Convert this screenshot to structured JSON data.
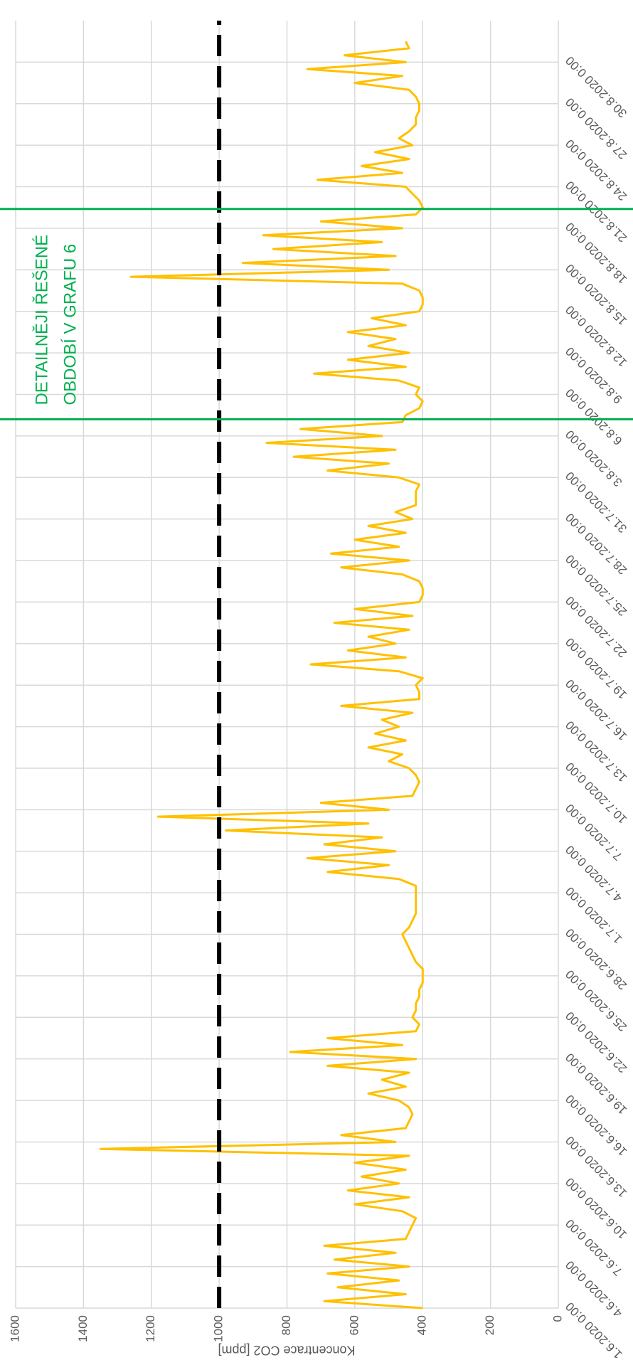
{
  "chart_data": {
    "type": "line",
    "y_label": "Koncentrace CO2 [ppm]",
    "annotation": [
      "DETAILNĚJI ŘEŠENÉ",
      "OBDOBÍ V GRAFU 6"
    ],
    "color": "#ffc000",
    "threshold": 1000,
    "threshold_color": "#000000",
    "vlines": [
      64.2,
      79.4
    ],
    "vline_color": "#00b050",
    "grid": true,
    "xlim": [
      0,
      93
    ],
    "ylim": [
      0,
      1600
    ],
    "yticks": [
      0,
      200,
      400,
      600,
      800,
      1000,
      1200,
      1400,
      1600
    ],
    "xticks": [
      {
        "value": 0,
        "label": "1.6.2020 0:00"
      },
      {
        "value": 3,
        "label": "4.6.2020 0:00"
      },
      {
        "value": 6,
        "label": "7.6.2020 0:00"
      },
      {
        "value": 9,
        "label": "10.6.2020 0:00"
      },
      {
        "value": 12,
        "label": "13.6.2020 0:00"
      },
      {
        "value": 15,
        "label": "16.6.2020 0:00"
      },
      {
        "value": 18,
        "label": "19.6.2020 0:00"
      },
      {
        "value": 21,
        "label": "22.6.2020 0:00"
      },
      {
        "value": 24,
        "label": "25.6.2020 0:00"
      },
      {
        "value": 27,
        "label": "28.6.2020 0:00"
      },
      {
        "value": 30,
        "label": "1.7.2020 0:00"
      },
      {
        "value": 33,
        "label": "4.7.2020 0:00"
      },
      {
        "value": 36,
        "label": "7.7.2020 0:00"
      },
      {
        "value": 39,
        "label": "10.7.2020 0:00"
      },
      {
        "value": 42,
        "label": "13.7.2020 0:00"
      },
      {
        "value": 45,
        "label": "16.7.2020 0:00"
      },
      {
        "value": 48,
        "label": "19.7.2020 0:00"
      },
      {
        "value": 51,
        "label": "22.7.2020 0:00"
      },
      {
        "value": 54,
        "label": "25.7.2020 0:00"
      },
      {
        "value": 57,
        "label": "28.7.2020 0:00"
      },
      {
        "value": 60,
        "label": "31.7.2020 0:00"
      },
      {
        "value": 63,
        "label": "3.8.2020 0:00"
      },
      {
        "value": 66,
        "label": "6.8.2020 0:00"
      },
      {
        "value": 69,
        "label": "9.8.2020 0:00"
      },
      {
        "value": 72,
        "label": "12.8.2020 0:00"
      },
      {
        "value": 75,
        "label": "15.8.2020 0:00"
      },
      {
        "value": 78,
        "label": "18.8.2020 0:00"
      },
      {
        "value": 81,
        "label": "21.8.2020 0:00"
      },
      {
        "value": 84,
        "label": "24.8.2020 0:00"
      },
      {
        "value": 87,
        "label": "27.8.2020 0:00"
      },
      {
        "value": 90,
        "label": "30.8.2020 0:00"
      }
    ],
    "x": [
      0,
      0.5,
      1,
      1.5,
      2,
      2.5,
      3,
      3.5,
      4,
      4.5,
      5,
      5.5,
      6,
      6.5,
      7,
      7.5,
      8,
      8.5,
      9,
      9.5,
      10,
      10.5,
      11,
      11.5,
      12,
      12.5,
      13,
      13.5,
      14,
      14.5,
      15,
      15.5,
      16,
      16.5,
      17,
      17.5,
      18,
      18.5,
      19,
      19.5,
      20,
      20.5,
      21,
      21.5,
      22,
      22.5,
      23,
      23.5,
      24,
      24.5,
      25,
      25.5,
      26,
      26.5,
      27,
      27.5,
      28,
      28.5,
      29,
      29.5,
      30,
      30.5,
      31,
      31.5,
      32,
      32.5,
      33,
      33.5,
      34,
      34.5,
      35,
      35.5,
      36,
      36.5,
      37,
      37.5,
      38,
      38.5,
      39,
      39.5,
      40,
      40.5,
      41,
      41.5,
      42,
      42.5,
      43,
      43.5,
      44,
      44.5,
      45,
      45.5,
      46,
      46.5,
      47,
      47.5,
      48,
      48.5,
      49,
      49.5,
      50,
      50.5,
      51,
      51.5,
      52,
      52.5,
      53,
      53.5,
      54,
      54.5,
      55,
      55.5,
      56,
      56.5,
      57,
      57.5,
      58,
      58.5,
      59,
      59.5,
      60,
      60.5,
      61,
      61.5,
      62,
      62.5,
      63,
      63.5,
      64,
      64.5,
      65,
      65.5,
      66,
      66.5,
      67,
      67.5,
      68,
      68.5,
      69,
      69.5,
      70,
      70.5,
      71,
      71.5,
      72,
      72.5,
      73,
      73.5,
      74,
      74.5,
      75,
      75.5,
      76,
      76.5,
      77,
      77.5,
      78,
      78.5,
      79,
      79.5,
      80,
      80.5,
      81,
      81.5,
      82,
      82.5,
      83,
      83.5,
      84,
      84.5,
      85,
      85.5,
      86,
      86.5,
      87,
      87.5,
      88,
      88.5,
      89,
      89.5,
      90,
      90.5,
      91,
      91.5
    ],
    "values": [
      400,
      690,
      450,
      650,
      470,
      680,
      440,
      660,
      480,
      690,
      450,
      440,
      430,
      420,
      460,
      600,
      440,
      620,
      470,
      580,
      450,
      600,
      440,
      1350,
      480,
      640,
      450,
      440,
      430,
      440,
      470,
      560,
      450,
      520,
      440,
      680,
      420,
      790,
      460,
      680,
      420,
      410,
      430,
      420,
      420,
      410,
      410,
      400,
      400,
      400,
      420,
      430,
      440,
      450,
      460,
      440,
      430,
      420,
      420,
      420,
      420,
      420,
      470,
      680,
      500,
      740,
      480,
      690,
      520,
      980,
      560,
      1180,
      500,
      700,
      430,
      420,
      410,
      420,
      440,
      500,
      460,
      560,
      450,
      540,
      470,
      520,
      430,
      640,
      410,
      410,
      420,
      400,
      470,
      730,
      450,
      620,
      480,
      560,
      440,
      660,
      430,
      600,
      410,
      400,
      400,
      410,
      460,
      640,
      440,
      670,
      470,
      600,
      450,
      560,
      430,
      480,
      420,
      420,
      420,
      410,
      470,
      680,
      500,
      780,
      480,
      860,
      520,
      760,
      460,
      450,
      410,
      400,
      420,
      410,
      470,
      720,
      450,
      620,
      440,
      560,
      480,
      620,
      450,
      550,
      410,
      400,
      400,
      410,
      460,
      1260,
      500,
      930,
      480,
      840,
      520,
      870,
      460,
      700,
      420,
      400,
      410,
      430,
      450,
      710,
      460,
      580,
      440,
      540,
      430,
      470,
      440,
      420,
      420,
      410,
      410,
      420,
      440,
      600,
      460,
      740,
      450,
      630,
      440,
      450
    ]
  }
}
